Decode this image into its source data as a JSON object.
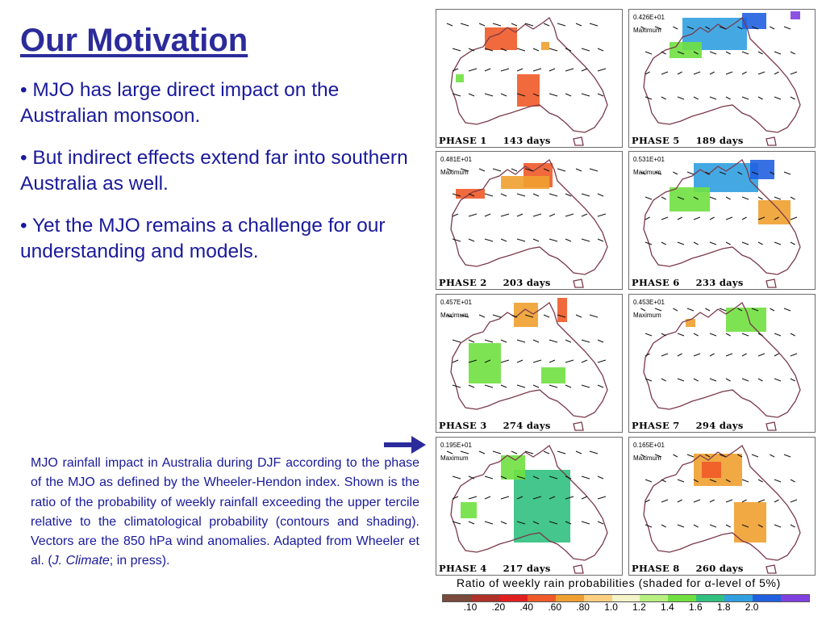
{
  "slide": {
    "title": "Our Motivation",
    "bullets": [
      "• MJO has large direct impact on the Australian monsoon.",
      "• But indirect effects extend far into southern Australia as well.",
      "• Yet the MJO remains a challenge for our understanding and models."
    ],
    "caption_main": "MJO rainfall impact in Australia during DJF according to the phase of the MJO as defined by the Wheeler-Hendon index. Shown is the ratio of the probability of weekly rainfall exceeding the upper tercile relative to the climatological probability (contours and shading). Vectors are the 850 hPa wind anomalies. Adapted from Wheeler et al. (",
    "caption_journal": "J. Climate",
    "caption_end": "; in press)."
  },
  "panels": [
    {
      "phase": "PHASE 1",
      "days": "143 days",
      "maxval": "",
      "maxlabel": ""
    },
    {
      "phase": "PHASE 2",
      "days": "203 days",
      "maxval": "0.481E+01",
      "maxlabel": "Maximum"
    },
    {
      "phase": "PHASE 3",
      "days": "274 days",
      "maxval": "0.457E+01",
      "maxlabel": "Maximum"
    },
    {
      "phase": "PHASE 4",
      "days": "217 days",
      "maxval": "0.195E+01",
      "maxlabel": "Maximum"
    },
    {
      "phase": "PHASE 5",
      "days": "189 days",
      "maxval": "0.426E+01",
      "maxlabel": "Maximum"
    },
    {
      "phase": "PHASE 6",
      "days": "233 days",
      "maxval": "0.531E+01",
      "maxlabel": "Maximum"
    },
    {
      "phase": "PHASE 7",
      "days": "294 days",
      "maxval": "0.453E+01",
      "maxlabel": "Maximum"
    },
    {
      "phase": "PHASE 8",
      "days": "260 days",
      "maxval": "0.165E+01",
      "maxlabel": "Maximum"
    }
  ],
  "scale": {
    "title": "Ratio of weekly rain probabilities (shaded for α-level of 5%)",
    "ticks": [
      ".10",
      ".20",
      ".40",
      ".60",
      ".80",
      "1.0",
      "1.2",
      "1.4",
      "1.6",
      "1.8",
      "2.0"
    ],
    "colors": [
      "#7a4a3a",
      "#b0302a",
      "#e02020",
      "#f05a28",
      "#f0a030",
      "#ffd080",
      "#f4f4c8",
      "#b8f080",
      "#70e040",
      "#30c080",
      "#30a0e0",
      "#2060e0",
      "#8040e0"
    ]
  }
}
